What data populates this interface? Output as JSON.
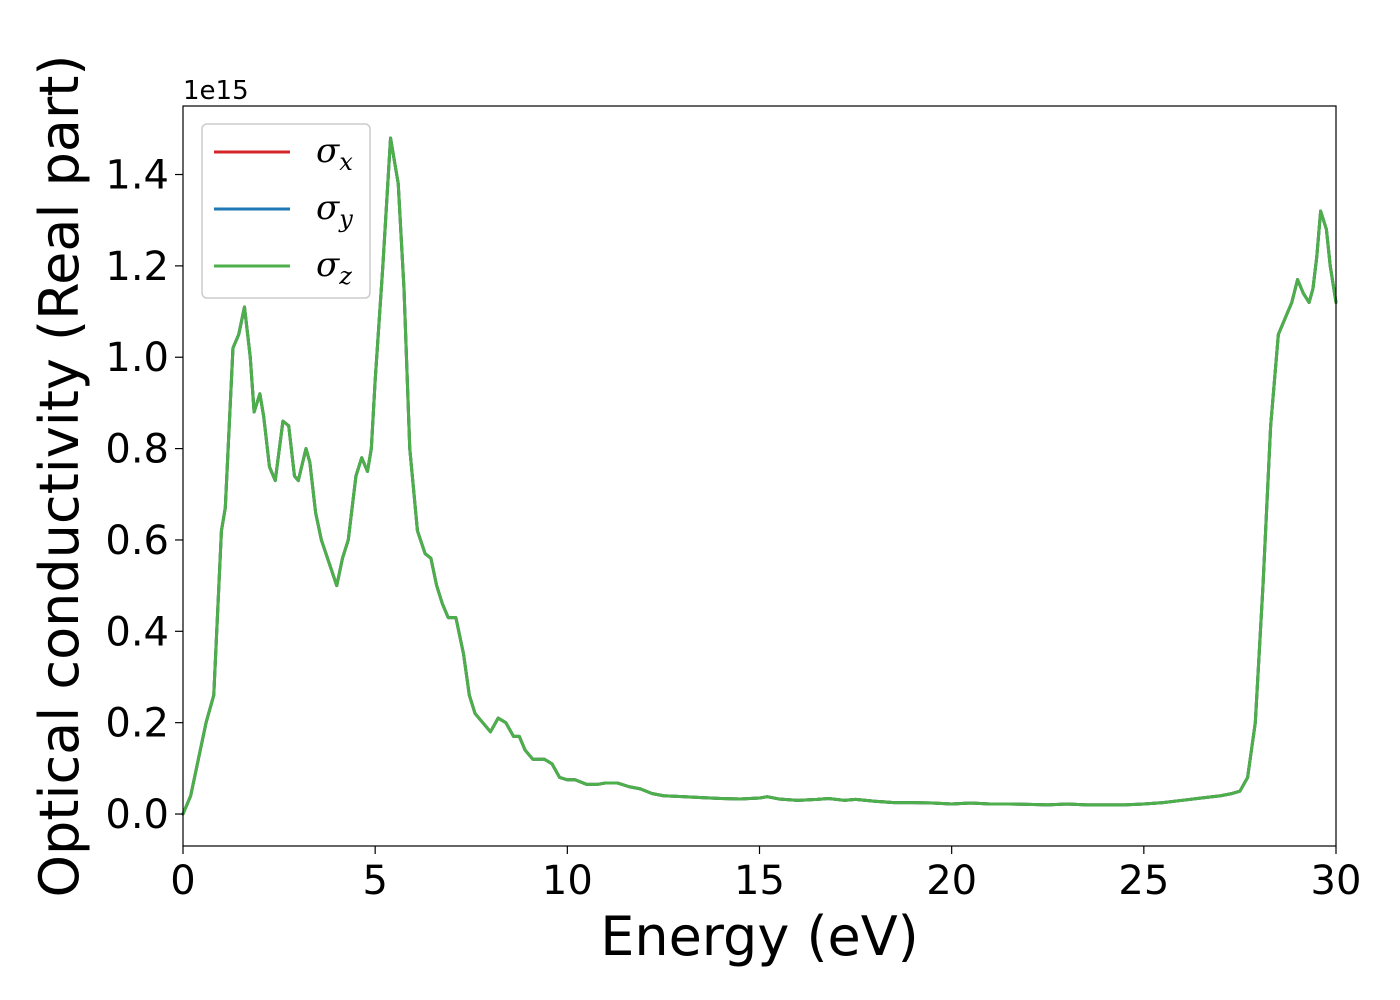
{
  "chart_data": {
    "type": "line",
    "xlabel": "Energy (eV)",
    "ylabel": "Optical conductivity (Real part)",
    "y_offset_label": "1e15",
    "xlim": [
      0,
      30
    ],
    "ylim": [
      -0.07,
      1.55
    ],
    "x_ticks": [
      0,
      5,
      10,
      15,
      20,
      25,
      30
    ],
    "x_tick_labels": [
      "0",
      "5",
      "10",
      "15",
      "20",
      "25",
      "30"
    ],
    "y_ticks": [
      0.0,
      0.2,
      0.4,
      0.6,
      0.8,
      1.0,
      1.2,
      1.4
    ],
    "y_tick_labels": [
      "0.0",
      "0.2",
      "0.4",
      "0.6",
      "0.8",
      "1.0",
      "1.2",
      "1.4"
    ],
    "grid": false,
    "legend_position": "top-left",
    "x": [
      0.0,
      0.2,
      0.4,
      0.6,
      0.8,
      1.0,
      1.1,
      1.3,
      1.45,
      1.6,
      1.75,
      1.85,
      2.0,
      2.1,
      2.25,
      2.4,
      2.6,
      2.75,
      2.9,
      3.0,
      3.2,
      3.3,
      3.45,
      3.6,
      3.8,
      4.0,
      4.15,
      4.3,
      4.5,
      4.65,
      4.8,
      4.9,
      5.0,
      5.2,
      5.4,
      5.6,
      5.75,
      5.9,
      6.1,
      6.3,
      6.45,
      6.6,
      6.75,
      6.9,
      7.1,
      7.3,
      7.45,
      7.6,
      7.8,
      8.0,
      8.2,
      8.4,
      8.6,
      8.75,
      8.9,
      9.1,
      9.4,
      9.6,
      9.8,
      10.0,
      10.2,
      10.5,
      10.8,
      11.0,
      11.3,
      11.6,
      11.9,
      12.2,
      12.5,
      13.0,
      13.5,
      14.0,
      14.5,
      15.0,
      15.2,
      15.5,
      16.0,
      16.5,
      16.8,
      17.2,
      17.5,
      18.0,
      18.5,
      19.0,
      19.5,
      20.0,
      20.5,
      21.0,
      21.5,
      22.0,
      22.5,
      23.0,
      23.5,
      24.0,
      24.5,
      25.0,
      25.5,
      26.0,
      26.5,
      27.0,
      27.3,
      27.5,
      27.7,
      27.9,
      28.1,
      28.3,
      28.5,
      28.7,
      28.85,
      29.0,
      29.15,
      29.3,
      29.4,
      29.5,
      29.6,
      29.75,
      29.85,
      30.0
    ],
    "series": [
      {
        "name": "σx",
        "color": "#d62728",
        "values": [
          0.0,
          0.04,
          0.12,
          0.2,
          0.26,
          0.62,
          0.67,
          1.02,
          1.05,
          1.11,
          1.0,
          0.88,
          0.92,
          0.87,
          0.76,
          0.73,
          0.86,
          0.85,
          0.74,
          0.73,
          0.8,
          0.77,
          0.66,
          0.6,
          0.55,
          0.5,
          0.56,
          0.6,
          0.74,
          0.78,
          0.75,
          0.8,
          0.95,
          1.2,
          1.48,
          1.38,
          1.15,
          0.8,
          0.62,
          0.57,
          0.56,
          0.5,
          0.46,
          0.43,
          0.43,
          0.35,
          0.26,
          0.22,
          0.2,
          0.18,
          0.21,
          0.2,
          0.17,
          0.17,
          0.14,
          0.12,
          0.12,
          0.11,
          0.08,
          0.075,
          0.075,
          0.065,
          0.065,
          0.068,
          0.068,
          0.06,
          0.055,
          0.045,
          0.04,
          0.038,
          0.036,
          0.034,
          0.033,
          0.035,
          0.038,
          0.033,
          0.03,
          0.032,
          0.034,
          0.03,
          0.032,
          0.028,
          0.025,
          0.025,
          0.024,
          0.022,
          0.024,
          0.022,
          0.022,
          0.021,
          0.02,
          0.022,
          0.02,
          0.02,
          0.02,
          0.022,
          0.025,
          0.03,
          0.035,
          0.04,
          0.045,
          0.05,
          0.08,
          0.2,
          0.5,
          0.85,
          1.05,
          1.09,
          1.12,
          1.17,
          1.14,
          1.12,
          1.15,
          1.22,
          1.32,
          1.28,
          1.2,
          1.12
        ]
      },
      {
        "name": "σy",
        "color": "#1f77b4",
        "values": [
          0.0,
          0.04,
          0.12,
          0.2,
          0.26,
          0.62,
          0.67,
          1.02,
          1.05,
          1.11,
          1.0,
          0.88,
          0.92,
          0.87,
          0.76,
          0.73,
          0.86,
          0.85,
          0.74,
          0.73,
          0.8,
          0.77,
          0.66,
          0.6,
          0.55,
          0.5,
          0.56,
          0.6,
          0.74,
          0.78,
          0.75,
          0.8,
          0.95,
          1.2,
          1.48,
          1.38,
          1.15,
          0.8,
          0.62,
          0.57,
          0.56,
          0.5,
          0.46,
          0.43,
          0.43,
          0.35,
          0.26,
          0.22,
          0.2,
          0.18,
          0.21,
          0.2,
          0.17,
          0.17,
          0.14,
          0.12,
          0.12,
          0.11,
          0.08,
          0.075,
          0.075,
          0.065,
          0.065,
          0.068,
          0.068,
          0.06,
          0.055,
          0.045,
          0.04,
          0.038,
          0.036,
          0.034,
          0.033,
          0.035,
          0.038,
          0.033,
          0.03,
          0.032,
          0.034,
          0.03,
          0.032,
          0.028,
          0.025,
          0.025,
          0.024,
          0.022,
          0.024,
          0.022,
          0.022,
          0.021,
          0.02,
          0.022,
          0.02,
          0.02,
          0.02,
          0.022,
          0.025,
          0.03,
          0.035,
          0.04,
          0.045,
          0.05,
          0.08,
          0.2,
          0.5,
          0.85,
          1.05,
          1.09,
          1.12,
          1.17,
          1.14,
          1.12,
          1.15,
          1.22,
          1.32,
          1.28,
          1.2,
          1.12
        ]
      },
      {
        "name": "σz",
        "color": "#4daf4a",
        "values": [
          0.0,
          0.04,
          0.12,
          0.2,
          0.26,
          0.62,
          0.67,
          1.02,
          1.05,
          1.11,
          1.0,
          0.88,
          0.92,
          0.87,
          0.76,
          0.73,
          0.86,
          0.85,
          0.74,
          0.73,
          0.8,
          0.77,
          0.66,
          0.6,
          0.55,
          0.5,
          0.56,
          0.6,
          0.74,
          0.78,
          0.75,
          0.8,
          0.95,
          1.2,
          1.48,
          1.38,
          1.15,
          0.8,
          0.62,
          0.57,
          0.56,
          0.5,
          0.46,
          0.43,
          0.43,
          0.35,
          0.26,
          0.22,
          0.2,
          0.18,
          0.21,
          0.2,
          0.17,
          0.17,
          0.14,
          0.12,
          0.12,
          0.11,
          0.08,
          0.075,
          0.075,
          0.065,
          0.065,
          0.068,
          0.068,
          0.06,
          0.055,
          0.045,
          0.04,
          0.038,
          0.036,
          0.034,
          0.033,
          0.035,
          0.038,
          0.033,
          0.03,
          0.032,
          0.034,
          0.03,
          0.032,
          0.028,
          0.025,
          0.025,
          0.024,
          0.022,
          0.024,
          0.022,
          0.022,
          0.021,
          0.02,
          0.022,
          0.02,
          0.02,
          0.02,
          0.022,
          0.025,
          0.03,
          0.035,
          0.04,
          0.045,
          0.05,
          0.08,
          0.2,
          0.5,
          0.85,
          1.05,
          1.09,
          1.12,
          1.17,
          1.14,
          1.12,
          1.15,
          1.22,
          1.32,
          1.28,
          1.2,
          1.12
        ]
      }
    ],
    "legend": [
      {
        "symbol": "σ",
        "subscript": "x",
        "color": "#d62728"
      },
      {
        "symbol": "σ",
        "subscript": "y",
        "color": "#1f77b4"
      },
      {
        "symbol": "σ",
        "subscript": "z",
        "color": "#4daf4a"
      }
    ]
  }
}
